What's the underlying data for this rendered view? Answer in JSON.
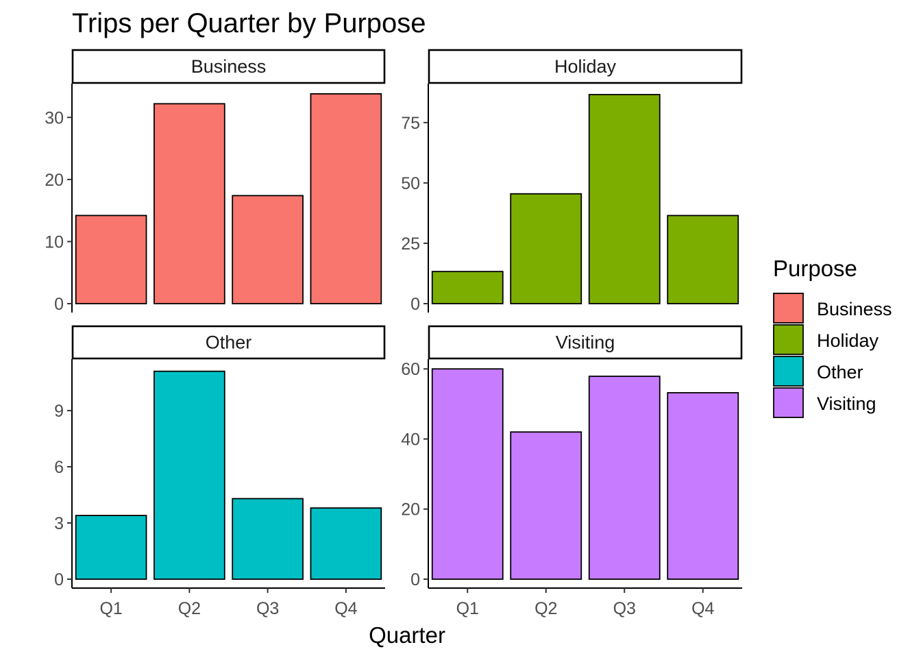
{
  "chart_data": {
    "type": "bar",
    "title": "Trips per Quarter by Purpose",
    "xlabel": "Quarter",
    "ylabel": "",
    "categories": [
      "Q1",
      "Q2",
      "Q3",
      "Q4"
    ],
    "facets": [
      {
        "name": "Business",
        "color": "#F8766D",
        "values": [
          14.2,
          32.2,
          17.4,
          33.8
        ],
        "ylim": [
          0,
          35
        ],
        "ticks": [
          0,
          10,
          20,
          30
        ]
      },
      {
        "name": "Holiday",
        "color": "#7CAE00",
        "values": [
          13.3,
          45.5,
          86.6,
          36.5
        ],
        "ylim": [
          0,
          90
        ],
        "ticks": [
          0,
          25,
          50,
          75
        ]
      },
      {
        "name": "Other",
        "color": "#00BFC4",
        "values": [
          3.4,
          11.1,
          4.3,
          3.8
        ],
        "ylim": [
          0,
          11.6
        ],
        "ticks": [
          0,
          3,
          6,
          9
        ]
      },
      {
        "name": "Visiting",
        "color": "#C77CFF",
        "values": [
          60.0,
          42.0,
          57.9,
          53.2
        ],
        "ylim": [
          0,
          62
        ],
        "ticks": [
          0,
          20,
          40,
          60
        ]
      }
    ],
    "legend": {
      "title": "Purpose",
      "position": "right",
      "items": [
        {
          "label": "Business",
          "color": "#F8766D"
        },
        {
          "label": "Holiday",
          "color": "#7CAE00"
        },
        {
          "label": "Other",
          "color": "#00BFC4"
        },
        {
          "label": "Visiting",
          "color": "#C77CFF"
        }
      ]
    },
    "grid": false
  }
}
